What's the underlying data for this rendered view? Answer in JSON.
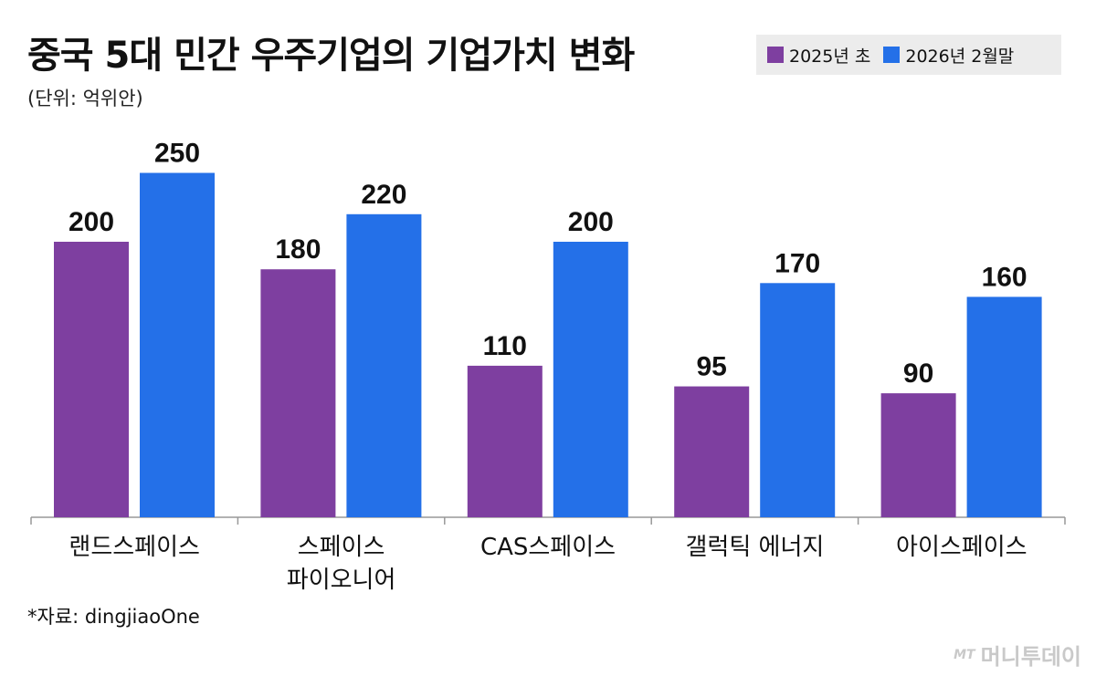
{
  "title": "중국 5대 민간 우주기업의 기업가치 변화",
  "unit_note": "(단위: 억위안)",
  "legend": [
    {
      "label": "2025년 초",
      "color": "#7e3fa0"
    },
    {
      "label": "2026년 2월말",
      "color": "#2470e8"
    }
  ],
  "source": "*자료: dingjiaoOne",
  "brand": {
    "mark": "MT",
    "name": "머니투데이"
  },
  "chart_data": {
    "type": "bar",
    "categories": [
      "랜드스페이스",
      "스페이스\n파이오니어",
      "CAS스페이스",
      "갤럭틱 에너지",
      "아이스페이스"
    ],
    "series": [
      {
        "name": "2025년 초",
        "values": [
          200,
          180,
          110,
          95,
          90
        ],
        "color": "#7e3fa0"
      },
      {
        "name": "2026년 2월말",
        "values": [
          250,
          220,
          200,
          170,
          160
        ],
        "color": "#2470e8"
      }
    ],
    "title": "중국 5대 민간 우주기업의 기업가치 변화",
    "ylabel": "(단위: 억위안)",
    "ylim": [
      0,
      250
    ],
    "grid": false,
    "legend_position": "top-right"
  }
}
